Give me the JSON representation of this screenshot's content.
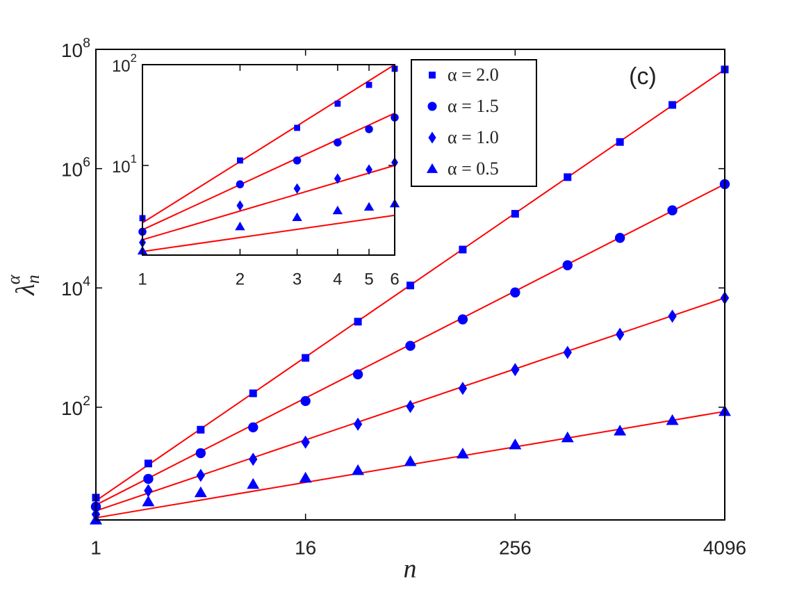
{
  "chart_data": [
    {
      "type": "scatter",
      "xscale": "log",
      "yscale": "log",
      "xlabel": "n",
      "ylabel": "λ",
      "ylabel_sub": "n",
      "ylabel_sup": "α",
      "annotation": "(c)",
      "xlim": [
        1,
        4096
      ],
      "ylim": [
        1.29,
        100000000
      ],
      "xticks": [
        1,
        16,
        256,
        4096
      ],
      "yticks": [
        {
          "value": 100,
          "label": "10^2"
        },
        {
          "value": 10000,
          "label": "10^4"
        },
        {
          "value": 1000000,
          "label": "10^6"
        },
        {
          "value": 100000000,
          "label": "10^8"
        }
      ],
      "x": [
        1,
        2,
        4,
        8,
        16,
        32,
        64,
        128,
        256,
        512,
        1024,
        2048,
        4096
      ],
      "series": [
        {
          "name": "α = 2.0",
          "marker": "square",
          "color": "#0000ff",
          "values": [
            3.05,
            11.4,
            42,
            171,
            672,
            2720,
            11000,
            44000,
            175000,
            720000,
            2800000,
            11700000,
            46000000
          ]
        },
        {
          "name": "α = 1.5",
          "marker": "circle",
          "color": "#0000ff",
          "values": [
            2.15,
            6.3,
            17,
            46,
            127,
            356,
            1070,
            2970,
            8400,
            24000,
            69000,
            200000,
            550000
          ]
        },
        {
          "name": "α = 1.0",
          "marker": "diamond",
          "color": "#0000ff",
          "values": [
            1.6,
            4.0,
            7.2,
            13.4,
            26,
            52,
            103,
            207,
            427,
            830,
            1670,
            3360,
            6800
          ]
        },
        {
          "name": "α = 0.5",
          "marker": "triangle",
          "color": "#0000ff",
          "values": [
            1.29,
            2.6,
            3.7,
            5.1,
            6.5,
            8.7,
            12.3,
            16.5,
            23.5,
            30.8,
            40,
            60,
            85
          ]
        }
      ],
      "lines": [
        {
          "color": "#ff0000",
          "x": [
            1,
            4096
          ],
          "values": [
            2.7,
            46000000
          ]
        },
        {
          "color": "#ff0000",
          "x": [
            1,
            4096
          ],
          "values": [
            2.3,
            550000
          ]
        },
        {
          "color": "#ff0000",
          "x": [
            1,
            4096
          ],
          "values": [
            1.83,
            6800
          ]
        },
        {
          "color": "#ff0000",
          "x": [
            1,
            4096
          ],
          "values": [
            1.4,
            85
          ]
        }
      ]
    },
    {
      "type": "scatter",
      "xscale": "log",
      "yscale": "log",
      "xlim": [
        1,
        6
      ],
      "ylim": [
        1.29,
        100
      ],
      "xticks": [
        1,
        2,
        3,
        4,
        5,
        6
      ],
      "yticks": [
        {
          "value": 10,
          "label": "10^1"
        },
        {
          "value": 100,
          "label": "10^2"
        }
      ],
      "x": [
        1,
        2,
        3,
        4,
        5,
        6
      ],
      "series": [
        {
          "marker": "square",
          "color": "#0000ff",
          "values": [
            3.0,
            11.2,
            23.6,
            41,
            63,
            91
          ]
        },
        {
          "marker": "circle",
          "color": "#0000ff",
          "values": [
            2.2,
            6.5,
            11.2,
            16.9,
            22.9,
            29.9
          ]
        },
        {
          "marker": "diamond",
          "color": "#0000ff",
          "values": [
            1.72,
            4.0,
            5.9,
            7.4,
            9.1,
            10.7
          ]
        },
        {
          "marker": "triangle",
          "color": "#0000ff",
          "values": [
            1.42,
            2.47,
            3.05,
            3.56,
            3.87,
            4.17
          ]
        }
      ],
      "lines": [
        {
          "color": "#ff0000",
          "x": [
            1,
            6
          ],
          "values": [
            2.7,
            100
          ]
        },
        {
          "color": "#ff0000",
          "x": [
            1,
            6
          ],
          "values": [
            2.3,
            33
          ]
        },
        {
          "color": "#ff0000",
          "x": [
            1,
            6
          ],
          "values": [
            1.83,
            10
          ]
        },
        {
          "color": "#ff0000",
          "x": [
            1,
            6
          ],
          "values": [
            1.4,
            3.2
          ]
        }
      ]
    }
  ]
}
